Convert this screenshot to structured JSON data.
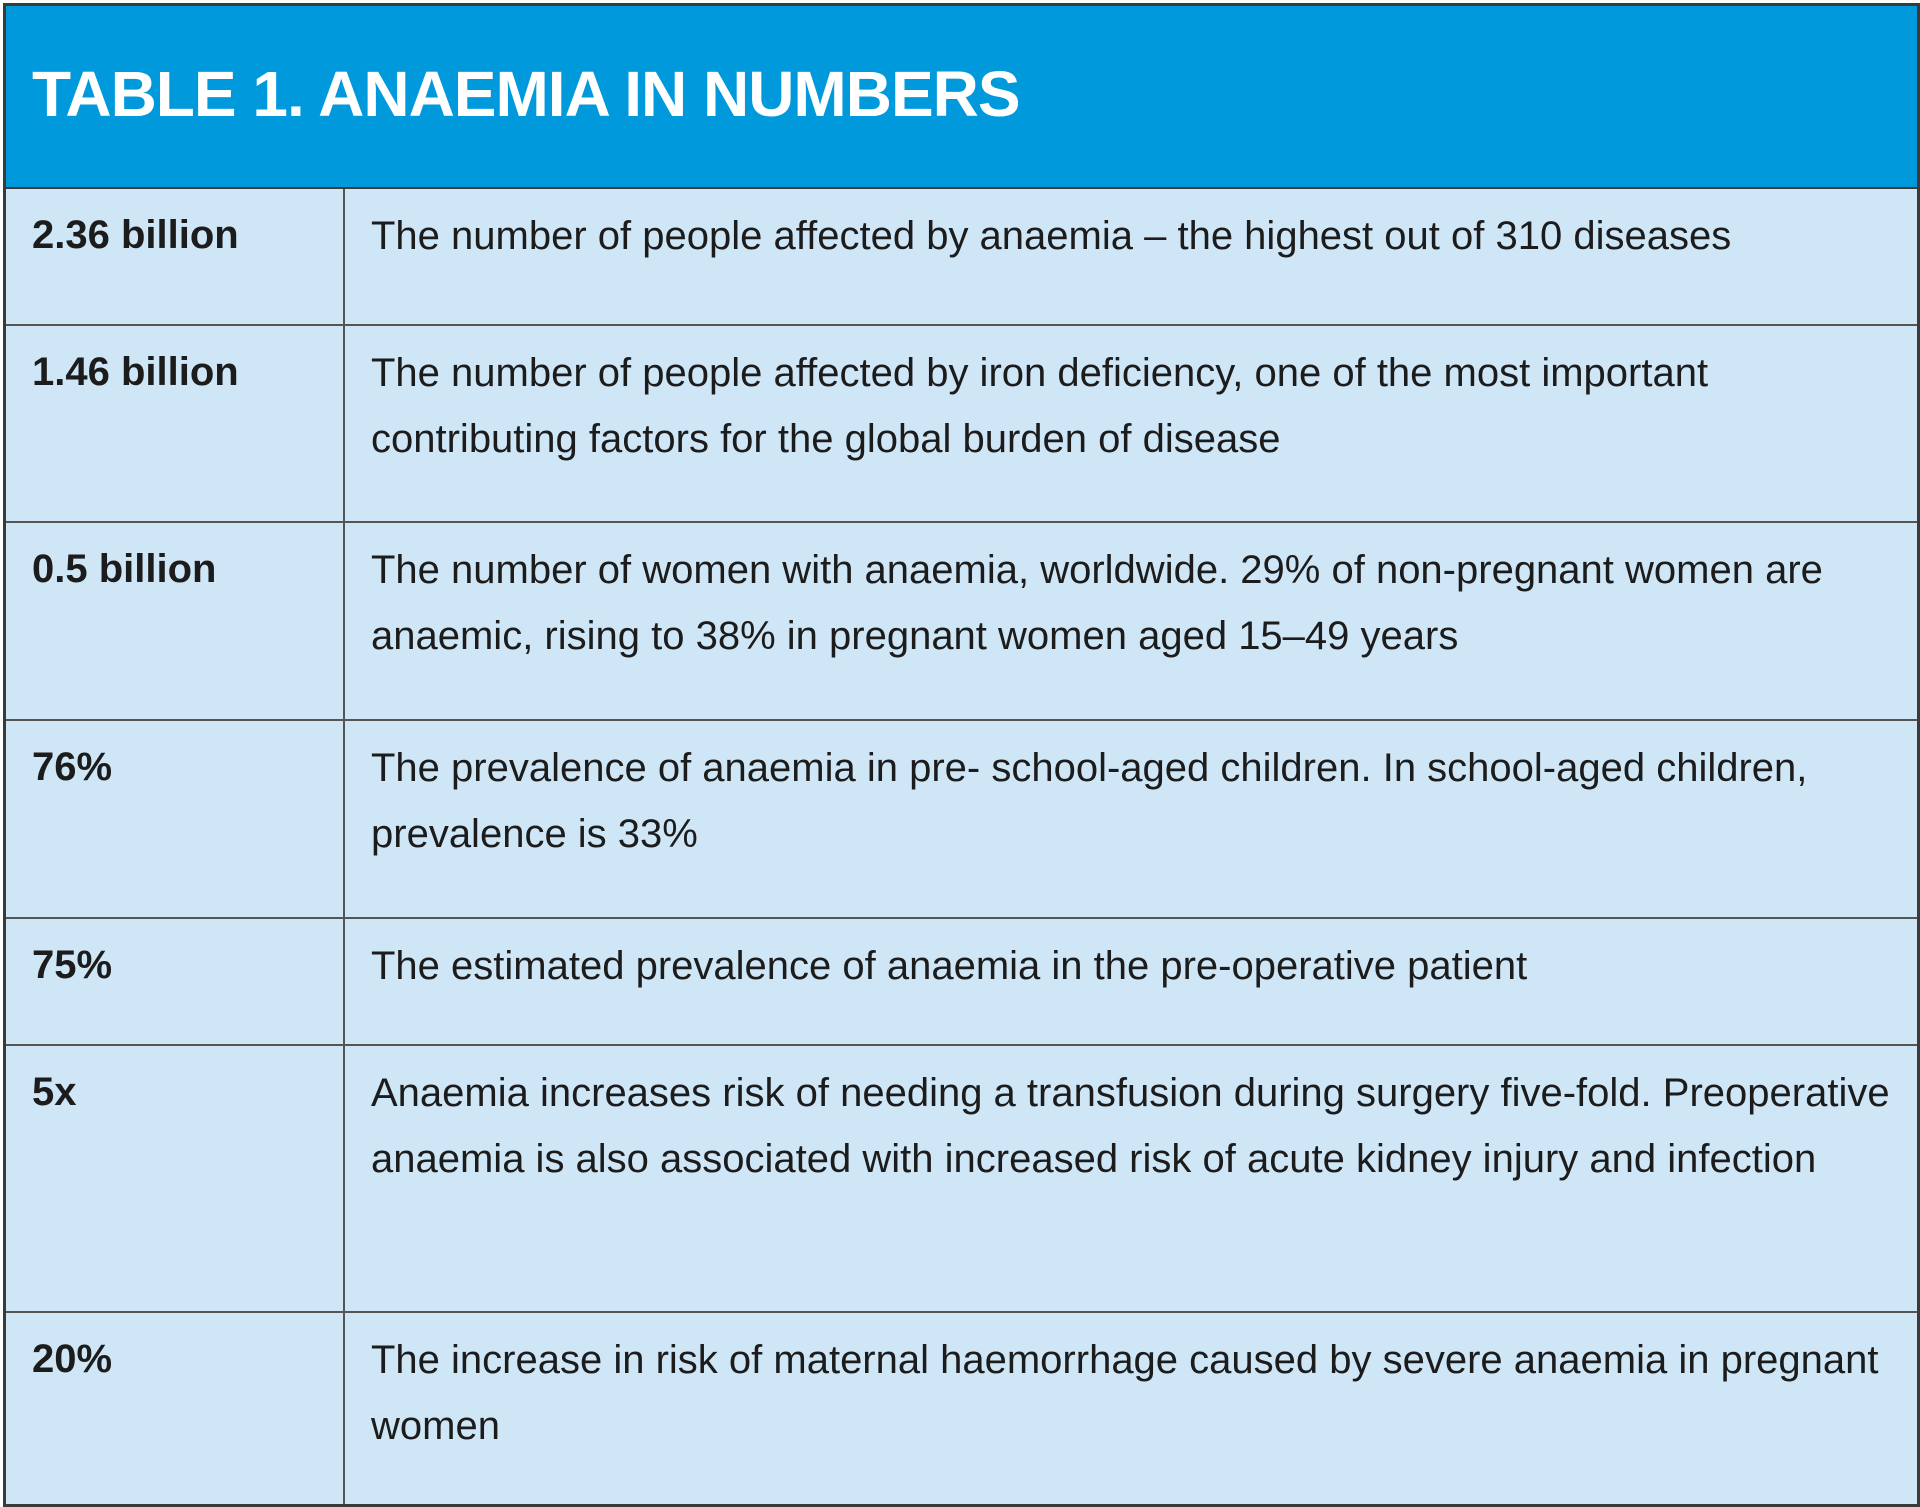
{
  "title": "TABLE 1. ANAEMIA IN NUMBERS",
  "colors": {
    "header_bg": "#0099dc",
    "body_bg": "#cfe6f7",
    "border": "#3a3a3a"
  },
  "rows": [
    {
      "stat": "2.36 billion",
      "description": "The number of people affected by anaemia – the highest out of 310 diseases"
    },
    {
      "stat": "1.46 billion",
      "description": "The number of people affected by iron deficiency, one of the most important contributing factors for the global burden of disease"
    },
    {
      "stat": "0.5 billion",
      "description": "The number of women with anaemia, worldwide. 29% of non-pregnant women are anaemic, rising to 38% in pregnant women aged 15–49 years"
    },
    {
      "stat": "76%",
      "description": "The prevalence of anaemia in pre- school-aged children. In school-aged children, prevalence is 33%"
    },
    {
      "stat": "75%",
      "description": "The estimated prevalence of anaemia in the pre-operative patient"
    },
    {
      "stat": "5x",
      "description": "Anaemia increases risk of needing a transfusion during surgery five-fold. Preoperative anaemia is also associated with increased risk of acute kidney injury and infection"
    },
    {
      "stat": "20%",
      "description": "The increase in risk of maternal haemorrhage caused by severe anaemia in pregnant women"
    }
  ]
}
